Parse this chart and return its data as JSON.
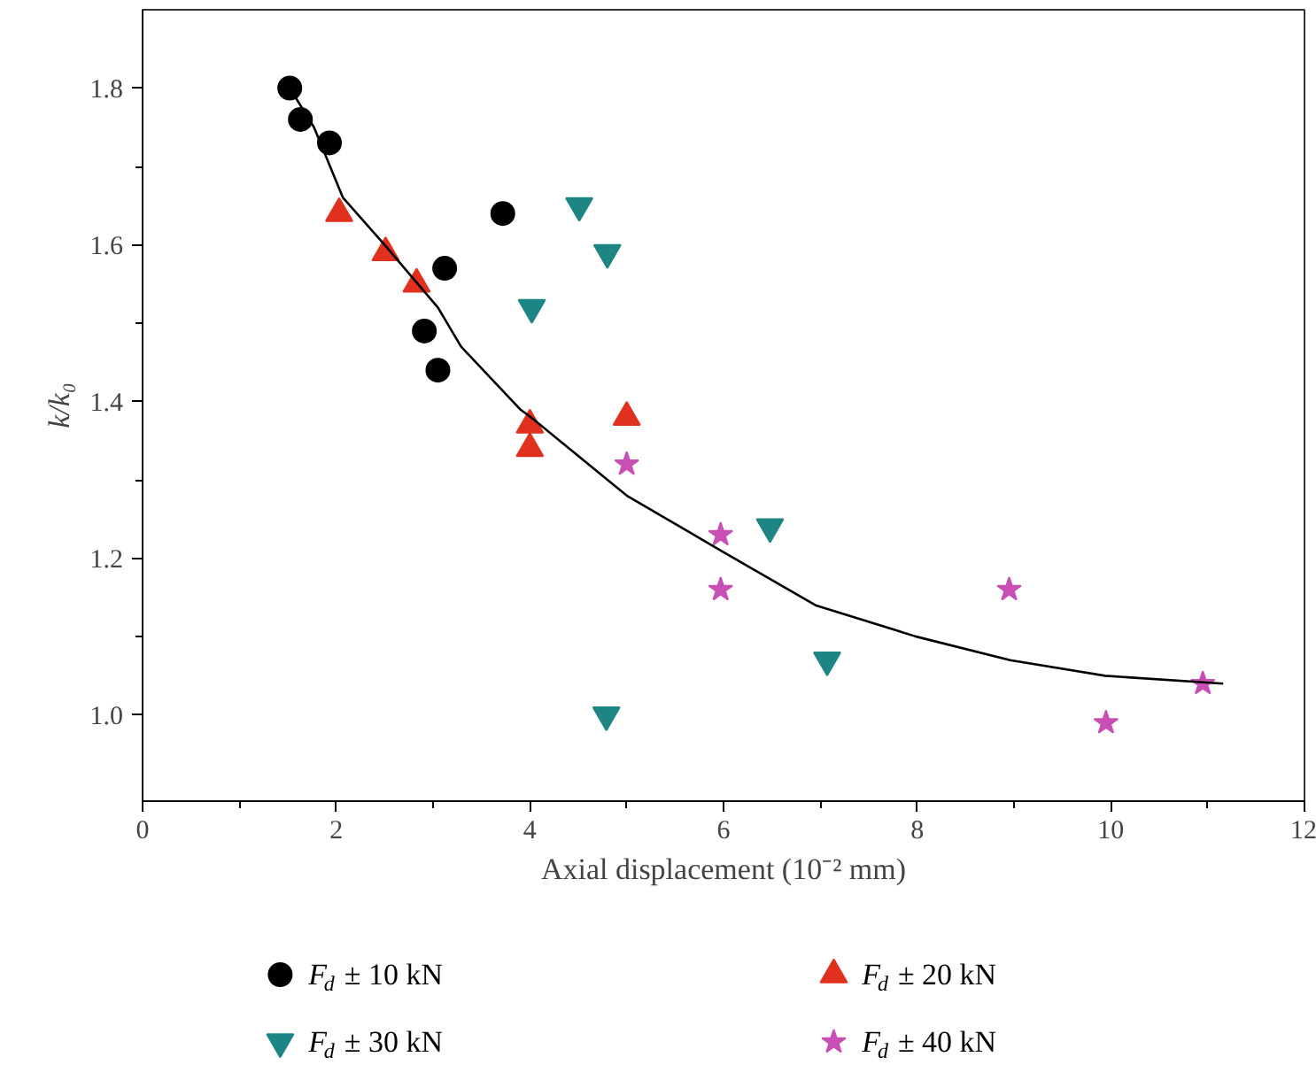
{
  "chart_data": {
    "type": "scatter",
    "xlabel": "Axial displacement (10⁻² mm)",
    "ylabel": "k/k₀",
    "xlim": [
      0,
      12
    ],
    "ylim": [
      0.89,
      1.9
    ],
    "xticks": [
      0,
      2,
      4,
      6,
      8,
      10,
      12
    ],
    "yticks": [
      {
        "value": 1.0,
        "label": "1.0"
      },
      {
        "value": 1.2,
        "label": "1.2"
      },
      {
        "value": 1.4,
        "label": "1.4"
      },
      {
        "value": 1.6,
        "label": "1.6"
      },
      {
        "value": 1.8,
        "label": "1.8"
      }
    ],
    "grid": false,
    "legend": "bottom",
    "series": [
      {
        "name": "F$_{d}$ ± 10 kN",
        "color": "#000000",
        "marker": "circle",
        "x": [
          1.52,
          1.63,
          1.93,
          2.91,
          3.05,
          3.12,
          3.72
        ],
        "values": [
          1.8,
          1.76,
          1.73,
          1.49,
          1.44,
          1.57,
          1.64
        ]
      },
      {
        "name": "F$_{d}$ ± 20 kN",
        "color": "#e0301e",
        "marker": "triangle",
        "x": [
          2.03,
          2.51,
          2.83,
          4.0,
          4.0,
          5.0
        ],
        "values": [
          1.64,
          1.59,
          1.55,
          1.37,
          1.34,
          1.38
        ]
      },
      {
        "name": "F$_{d}$ ± 30 kN",
        "color": "#1e8585",
        "marker": "triangle",
        "x": [
          4.51,
          4.8,
          4.02,
          6.48,
          7.07,
          4.79
        ],
        "values": [
          1.65,
          1.59,
          1.52,
          1.24,
          1.07,
          1.0
        ]
      },
      {
        "name": "F$_{d}$ ± 40 kN",
        "color": "#c84fb4",
        "marker": "star",
        "x": [
          5.0,
          5.97,
          5.97,
          8.95,
          9.95,
          10.95
        ],
        "values": [
          1.32,
          1.23,
          1.16,
          1.16,
          0.99,
          1.04
        ]
      },
      {
        "type": "line",
        "color": "#000000",
        "marker": "none",
        "line_style": "solid",
        "x": [
          1.52,
          1.77,
          2.07,
          2.5,
          3.05,
          3.29,
          3.9,
          4.01,
          5.0,
          5.97,
          6.95,
          7.99,
          8.96,
          9.94,
          11.16
        ],
        "values": [
          1.8,
          1.75,
          1.66,
          1.6,
          1.52,
          1.47,
          1.39,
          1.38,
          1.28,
          1.21,
          1.14,
          1.1,
          1.07,
          1.05,
          1.04
        ]
      }
    ]
  }
}
